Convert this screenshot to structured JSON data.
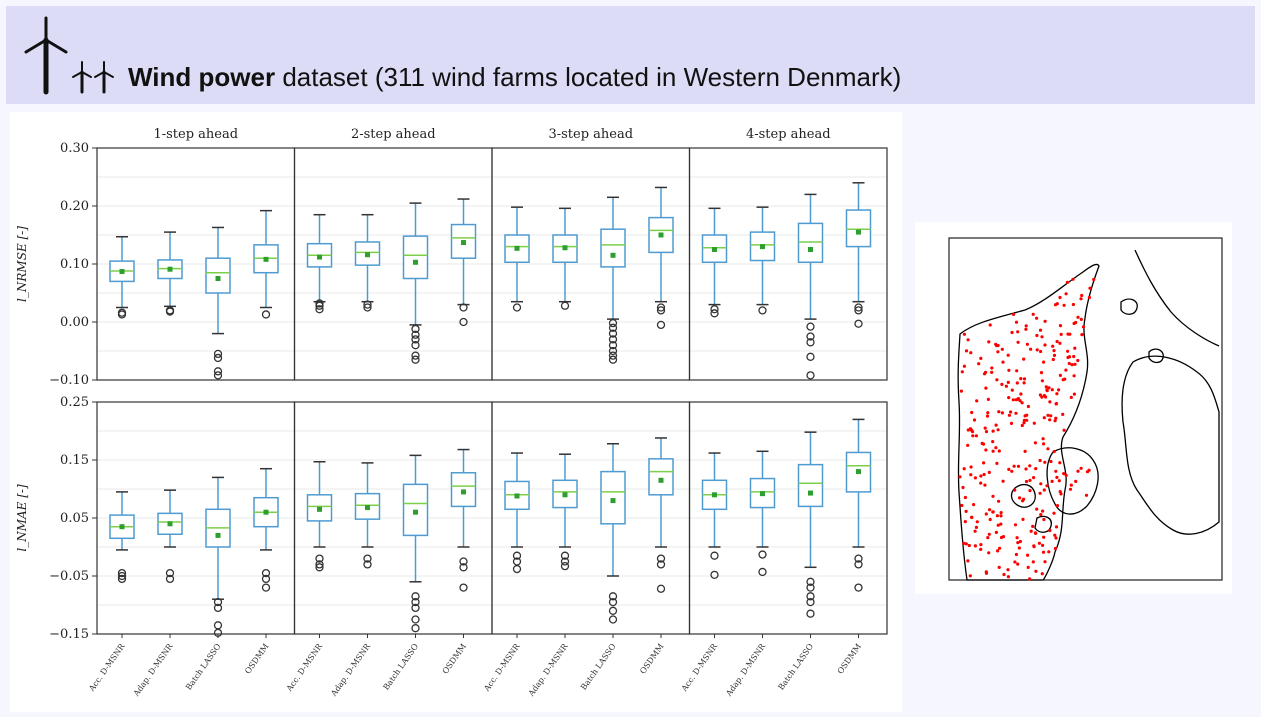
{
  "header": {
    "title_bold": "Wind power",
    "title_rest": "dataset (311 wind farms located in Western Denmark)"
  },
  "colors": {
    "banner": "#dcdcf6",
    "box": "#4f9bd1",
    "median": "#7ccf4a",
    "mean": "#2ca02c",
    "outlier": "#333333",
    "map_points": "#ff0000",
    "coastline": "#000000"
  },
  "chart_data": {
    "type": "box",
    "methods": [
      "Acc. D-MSNR",
      "Adap. D-MSNR",
      "Batch LASSO",
      "OSDMM"
    ],
    "horizons": [
      "1-step ahead",
      "2-step ahead",
      "3-step ahead",
      "4-step ahead"
    ],
    "rows": [
      {
        "ylabel": "l_NRMSE [-]",
        "ylim": [
          -0.1,
          0.3
        ],
        "yticks": [
          -0.1,
          0.0,
          0.1,
          0.2,
          0.3
        ],
        "ytick_labels": [
          "−0.10",
          "0.00",
          "0.10",
          "0.20",
          "0.30"
        ],
        "panels": [
          [
            {
              "wl": 0.025,
              "q1": 0.07,
              "med": 0.088,
              "q3": 0.105,
              "wh": 0.147,
              "mean": 0.087,
              "out": [
                0.016,
                0.013
              ]
            },
            {
              "wl": 0.027,
              "q1": 0.075,
              "med": 0.092,
              "q3": 0.107,
              "wh": 0.155,
              "mean": 0.091,
              "out": [
                0.02,
                0.018
              ]
            },
            {
              "wl": -0.02,
              "q1": 0.05,
              "med": 0.085,
              "q3": 0.11,
              "wh": 0.163,
              "mean": 0.075,
              "out": [
                -0.055,
                -0.062,
                -0.085,
                -0.092
              ]
            },
            {
              "wl": 0.025,
              "q1": 0.085,
              "med": 0.11,
              "q3": 0.133,
              "wh": 0.192,
              "mean": 0.108,
              "out": [
                0.013
              ]
            }
          ],
          [
            {
              "wl": 0.035,
              "q1": 0.095,
              "med": 0.115,
              "q3": 0.135,
              "wh": 0.185,
              "mean": 0.112,
              "out": [
                0.032,
                0.028,
                0.022
              ]
            },
            {
              "wl": 0.035,
              "q1": 0.098,
              "med": 0.12,
              "q3": 0.138,
              "wh": 0.185,
              "mean": 0.116,
              "out": [
                0.03,
                0.025
              ]
            },
            {
              "wl": -0.005,
              "q1": 0.075,
              "med": 0.115,
              "q3": 0.148,
              "wh": 0.205,
              "mean": 0.103,
              "out": [
                -0.012,
                -0.022,
                -0.03,
                -0.04,
                -0.058,
                -0.065
              ]
            },
            {
              "wl": 0.03,
              "q1": 0.11,
              "med": 0.145,
              "q3": 0.168,
              "wh": 0.212,
              "mean": 0.137,
              "out": [
                0.025,
                0.0
              ]
            }
          ],
          [
            {
              "wl": 0.035,
              "q1": 0.103,
              "med": 0.13,
              "q3": 0.15,
              "wh": 0.198,
              "mean": 0.127,
              "out": [
                0.025
              ]
            },
            {
              "wl": 0.035,
              "q1": 0.103,
              "med": 0.13,
              "q3": 0.15,
              "wh": 0.196,
              "mean": 0.128,
              "out": [
                0.028
              ]
            },
            {
              "wl": 0.005,
              "q1": 0.095,
              "med": 0.133,
              "q3": 0.16,
              "wh": 0.215,
              "mean": 0.115,
              "out": [
                -0.002,
                -0.01,
                -0.02,
                -0.03,
                -0.04,
                -0.05,
                -0.058,
                -0.065
              ]
            },
            {
              "wl": 0.035,
              "q1": 0.12,
              "med": 0.158,
              "q3": 0.18,
              "wh": 0.232,
              "mean": 0.15,
              "out": [
                0.025,
                0.02,
                -0.005
              ]
            }
          ],
          [
            {
              "wl": 0.03,
              "q1": 0.103,
              "med": 0.128,
              "q3": 0.15,
              "wh": 0.196,
              "mean": 0.125,
              "out": [
                0.022,
                0.015
              ]
            },
            {
              "wl": 0.03,
              "q1": 0.106,
              "med": 0.133,
              "q3": 0.155,
              "wh": 0.198,
              "mean": 0.13,
              "out": [
                0.02
              ]
            },
            {
              "wl": 0.005,
              "q1": 0.103,
              "med": 0.138,
              "q3": 0.17,
              "wh": 0.22,
              "mean": 0.125,
              "out": [
                -0.008,
                -0.025,
                -0.035,
                -0.06,
                -0.092
              ]
            },
            {
              "wl": 0.035,
              "q1": 0.13,
              "med": 0.16,
              "q3": 0.193,
              "wh": 0.24,
              "mean": 0.155,
              "out": [
                0.025,
                0.02,
                -0.003
              ]
            }
          ]
        ]
      },
      {
        "ylabel": "l_NMAE [-]",
        "ylim": [
          -0.15,
          0.25
        ],
        "yticks": [
          -0.15,
          -0.05,
          0.05,
          0.15,
          0.25
        ],
        "ytick_labels": [
          "−0.15",
          "−0.05",
          "0.05",
          "0.15",
          "0.25"
        ],
        "panels": [
          [
            {
              "wl": -0.005,
              "q1": 0.015,
              "med": 0.035,
              "q3": 0.055,
              "wh": 0.095,
              "mean": 0.035,
              "out": [
                -0.045,
                -0.05,
                -0.055
              ]
            },
            {
              "wl": 0.0,
              "q1": 0.022,
              "med": 0.043,
              "q3": 0.058,
              "wh": 0.098,
              "mean": 0.04,
              "out": [
                -0.045,
                -0.055
              ]
            },
            {
              "wl": -0.09,
              "q1": 0.0,
              "med": 0.033,
              "q3": 0.065,
              "wh": 0.12,
              "mean": 0.02,
              "out": [
                -0.095,
                -0.105,
                -0.135,
                -0.148
              ]
            },
            {
              "wl": -0.005,
              "q1": 0.035,
              "med": 0.06,
              "q3": 0.085,
              "wh": 0.135,
              "mean": 0.06,
              "out": [
                -0.045,
                -0.055,
                -0.07
              ]
            }
          ],
          [
            {
              "wl": 0.0,
              "q1": 0.045,
              "med": 0.07,
              "q3": 0.09,
              "wh": 0.147,
              "mean": 0.065,
              "out": [
                -0.02,
                -0.03,
                -0.035
              ]
            },
            {
              "wl": 0.0,
              "q1": 0.048,
              "med": 0.072,
              "q3": 0.092,
              "wh": 0.145,
              "mean": 0.068,
              "out": [
                -0.02,
                -0.03
              ]
            },
            {
              "wl": -0.06,
              "q1": 0.02,
              "med": 0.075,
              "q3": 0.108,
              "wh": 0.158,
              "mean": 0.06,
              "out": [
                -0.085,
                -0.095,
                -0.105,
                -0.125,
                -0.14
              ]
            },
            {
              "wl": 0.0,
              "q1": 0.07,
              "med": 0.105,
              "q3": 0.128,
              "wh": 0.168,
              "mean": 0.095,
              "out": [
                -0.025,
                -0.035,
                -0.07
              ]
            }
          ],
          [
            {
              "wl": 0.0,
              "q1": 0.065,
              "med": 0.09,
              "q3": 0.113,
              "wh": 0.162,
              "mean": 0.088,
              "out": [
                -0.015,
                -0.025,
                -0.038
              ]
            },
            {
              "wl": 0.0,
              "q1": 0.068,
              "med": 0.095,
              "q3": 0.115,
              "wh": 0.16,
              "mean": 0.09,
              "out": [
                -0.015,
                -0.025,
                -0.033
              ]
            },
            {
              "wl": -0.05,
              "q1": 0.04,
              "med": 0.095,
              "q3": 0.13,
              "wh": 0.178,
              "mean": 0.08,
              "out": [
                -0.085,
                -0.095,
                -0.11,
                -0.125
              ]
            },
            {
              "wl": 0.0,
              "q1": 0.09,
              "med": 0.13,
              "q3": 0.152,
              "wh": 0.188,
              "mean": 0.115,
              "out": [
                -0.02,
                -0.03,
                -0.072
              ]
            }
          ],
          [
            {
              "wl": 0.0,
              "q1": 0.065,
              "med": 0.09,
              "q3": 0.115,
              "wh": 0.162,
              "mean": 0.09,
              "out": [
                -0.015,
                -0.048
              ]
            },
            {
              "wl": 0.0,
              "q1": 0.068,
              "med": 0.095,
              "q3": 0.118,
              "wh": 0.165,
              "mean": 0.092,
              "out": [
                -0.013,
                -0.043
              ]
            },
            {
              "wl": -0.035,
              "q1": 0.07,
              "med": 0.11,
              "q3": 0.142,
              "wh": 0.198,
              "mean": 0.093,
              "out": [
                -0.06,
                -0.07,
                -0.085,
                -0.095,
                -0.115
              ]
            },
            {
              "wl": 0.0,
              "q1": 0.095,
              "med": 0.14,
              "q3": 0.163,
              "wh": 0.22,
              "mean": 0.13,
              "out": [
                -0.02,
                -0.03,
                -0.07
              ]
            }
          ]
        ]
      }
    ]
  }
}
